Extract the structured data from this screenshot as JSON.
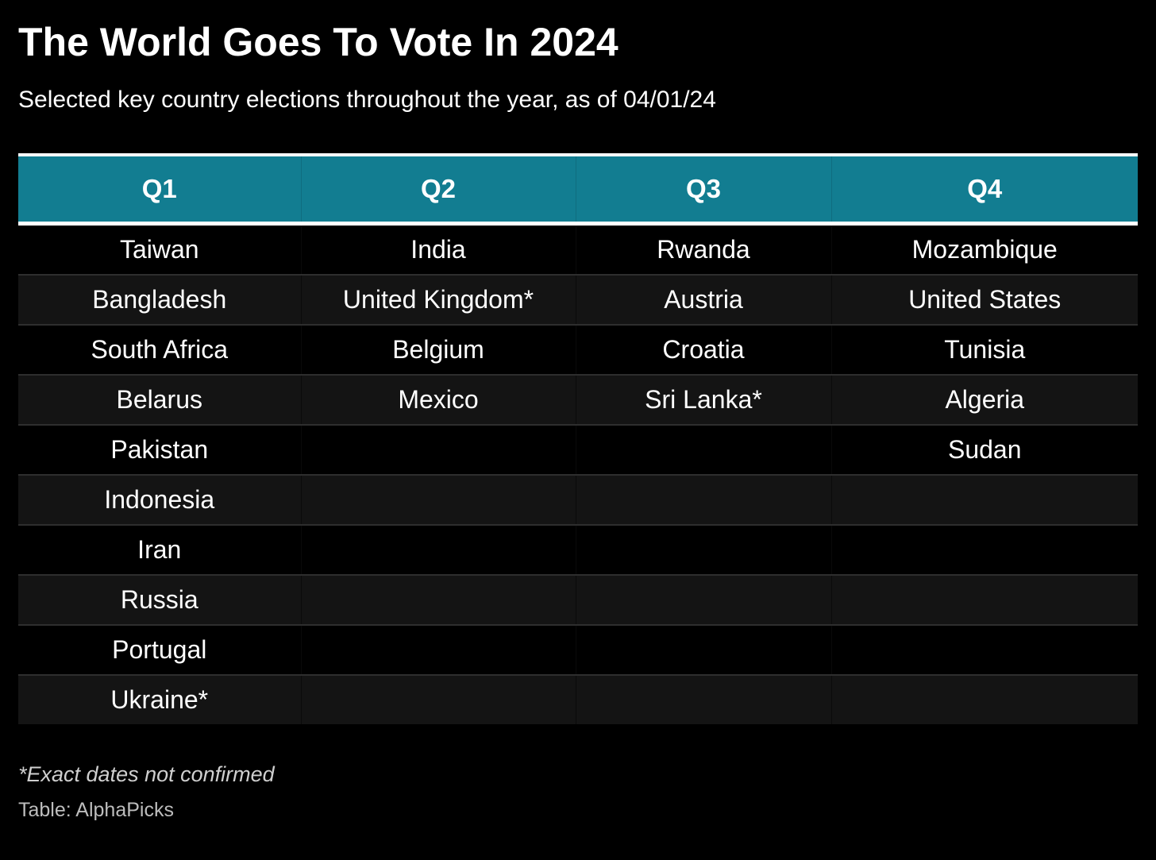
{
  "chart_data": {
    "type": "table",
    "title": "The World Goes To Vote In 2024",
    "subtitle": "Selected key country elections throughout the year, as of 04/01/24",
    "columns": [
      "Q1",
      "Q2",
      "Q3",
      "Q4"
    ],
    "rows": [
      [
        "Taiwan",
        "India",
        "Rwanda",
        "Mozambique"
      ],
      [
        "Bangladesh",
        "United Kingdom*",
        "Austria",
        "United States"
      ],
      [
        "South Africa",
        "Belgium",
        "Croatia",
        "Tunisia"
      ],
      [
        "Belarus",
        "Mexico",
        "Sri Lanka*",
        "Algeria"
      ],
      [
        "Pakistan",
        "",
        "",
        "Sudan"
      ],
      [
        "Indonesia",
        "",
        "",
        ""
      ],
      [
        "Iran",
        "",
        "",
        ""
      ],
      [
        "Russia",
        "",
        "",
        ""
      ],
      [
        "Portugal",
        "",
        "",
        ""
      ],
      [
        "Ukraine*",
        "",
        "",
        ""
      ]
    ],
    "footnote": "*Exact dates not confirmed",
    "source": "Table: AlphaPicks",
    "colors": {
      "header_background": "#127d91",
      "background": "#000000",
      "row_alt_background": "#141414",
      "text": "#ffffff"
    }
  }
}
